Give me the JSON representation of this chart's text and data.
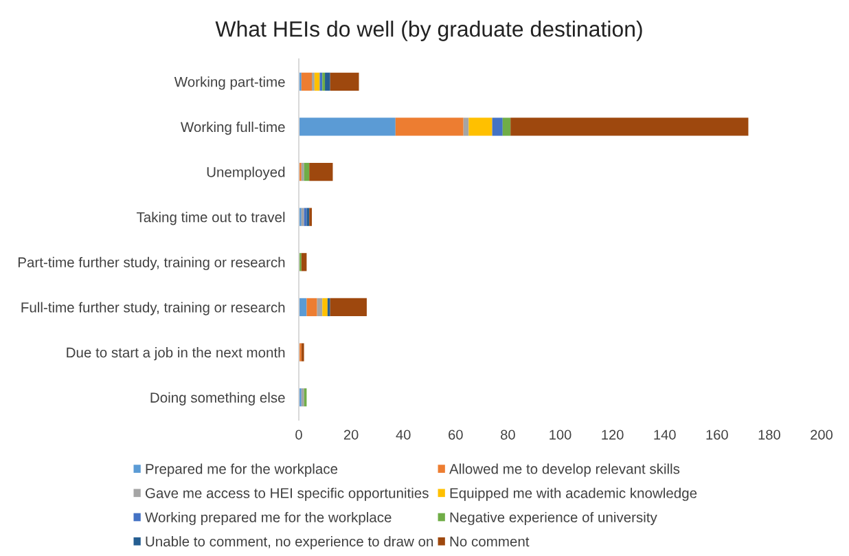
{
  "chart_data": {
    "type": "bar",
    "orientation": "horizontal",
    "stacked": true,
    "title": "What HEIs do well (by graduate destination)",
    "categories": [
      "Working part-time",
      "Working full-time",
      "Unemployed",
      "Taking time out to travel",
      "Part-time further study, training or research",
      "Full-time further study, training or research",
      "Due to start a job in the next month",
      "Doing something else"
    ],
    "series": [
      {
        "name": "Prepared me for the workplace",
        "color": "#5b9bd5",
        "values": [
          1,
          37,
          0,
          1,
          0,
          3,
          0,
          1
        ]
      },
      {
        "name": "Allowed me to develop relevant skills",
        "color": "#ed7d31",
        "values": [
          4,
          26,
          1,
          0,
          0,
          4,
          1,
          0
        ]
      },
      {
        "name": "Gave me access to HEI specific opportunities",
        "color": "#a5a5a5",
        "values": [
          1,
          2,
          1,
          1,
          0,
          2,
          0,
          1
        ]
      },
      {
        "name": "Equipped me with academic knowledge",
        "color": "#ffc000",
        "values": [
          2,
          9,
          0,
          0,
          0,
          2,
          0,
          0
        ]
      },
      {
        "name": "Working prepared me for the workplace",
        "color": "#4472c4",
        "values": [
          1,
          4,
          0,
          1,
          0,
          0,
          0,
          0
        ]
      },
      {
        "name": "Negative experience of university",
        "color": "#70ad47",
        "values": [
          1,
          3,
          2,
          0,
          1,
          0,
          0,
          1
        ]
      },
      {
        "name": "Unable to comment, no experience to draw on",
        "color": "#255e91",
        "values": [
          2,
          0,
          0,
          1,
          0,
          1,
          0,
          0
        ]
      },
      {
        "name": "No comment",
        "color": "#9e480e",
        "values": [
          11,
          91,
          9,
          1,
          2,
          14,
          1,
          0
        ]
      }
    ],
    "xlim": [
      0,
      200
    ],
    "xticks": [
      0,
      20,
      40,
      60,
      80,
      100,
      120,
      140,
      160,
      180,
      200
    ],
    "grid": false,
    "legend": "bottom"
  }
}
